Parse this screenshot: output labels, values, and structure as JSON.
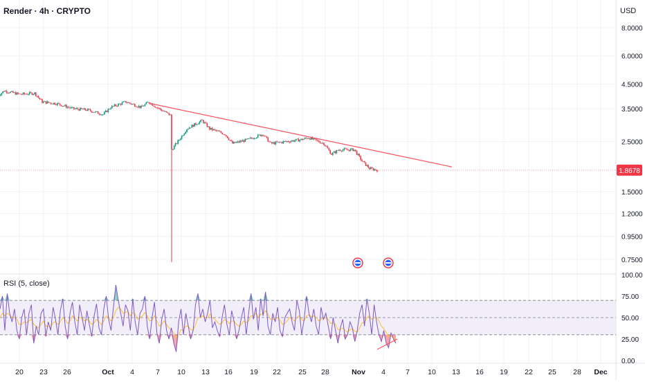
{
  "header": {
    "title": "Render · 4h · CRYPTO",
    "currency": "USD"
  },
  "colors": {
    "up": "#089981",
    "down": "#f23645",
    "trendline": "#f7525f",
    "rsi_line": "#7e57c2",
    "rsi_ma": "#fbc02d",
    "rsi_band": "#ede7f6",
    "grid": "#f0f3fa",
    "last_price": "#f23645",
    "event_icon": "#2962ff"
  },
  "chart_data": [
    {
      "type": "candlestick",
      "title": "Render · 4h · CRYPTO",
      "scale": "log",
      "y_ticks": [
        "8.0000",
        "6.0000",
        "4.5000",
        "3.5000",
        "2.5000",
        "1.5000",
        "1.2000",
        "0.9500",
        "0.7500"
      ],
      "x_ticks": [
        "20",
        "23",
        "26",
        "Oct",
        "4",
        "7",
        "10",
        "13",
        "16",
        "19",
        "22",
        "25",
        "28",
        "Nov",
        "4",
        "7",
        "10",
        "13",
        "16",
        "19",
        "22",
        "25",
        "28",
        "Dec"
      ],
      "last_price": "1.8678",
      "price_path": [
        {
          "x": "Sep 17",
          "y": 3.95
        },
        {
          "x": "Sep 18",
          "y": 4.2
        },
        {
          "x": "Sep 20",
          "y": 4.05
        },
        {
          "x": "Sep 22",
          "y": 4.1
        },
        {
          "x": "Sep 23",
          "y": 3.75
        },
        {
          "x": "Sep 25",
          "y": 3.68
        },
        {
          "x": "Sep 27",
          "y": 3.5
        },
        {
          "x": "Sep 29",
          "y": 3.45
        },
        {
          "x": "Oct 1",
          "y": 3.3
        },
        {
          "x": "Oct 2",
          "y": 3.55
        },
        {
          "x": "Oct 4",
          "y": 3.75
        },
        {
          "x": "Oct 6",
          "y": 3.55
        },
        {
          "x": "Oct 7",
          "y": 3.75
        },
        {
          "x": "Oct 8",
          "y": 3.55
        },
        {
          "x": "Oct 9",
          "y": 3.4
        },
        {
          "x": "Oct 10",
          "y": 3.25
        },
        {
          "x": "Oct 10",
          "y": 2.3
        },
        {
          "x": "Oct 11",
          "y": 2.55
        },
        {
          "x": "Oct 12",
          "y": 2.85
        },
        {
          "x": "Oct 14",
          "y": 3.1
        },
        {
          "x": "Oct 15",
          "y": 2.85
        },
        {
          "x": "Oct 17",
          "y": 2.7
        },
        {
          "x": "Oct 18",
          "y": 2.45
        },
        {
          "x": "Oct 20",
          "y": 2.55
        },
        {
          "x": "Oct 22",
          "y": 2.7
        },
        {
          "x": "Oct 23",
          "y": 2.45
        },
        {
          "x": "Oct 25",
          "y": 2.5
        },
        {
          "x": "Oct 27",
          "y": 2.55
        },
        {
          "x": "Oct 28",
          "y": 2.6
        },
        {
          "x": "Oct 30",
          "y": 2.45
        },
        {
          "x": "Oct 31",
          "y": 2.2
        },
        {
          "x": "Nov 1",
          "y": 2.3
        },
        {
          "x": "Nov 3",
          "y": 2.3
        },
        {
          "x": "Nov 4",
          "y": 2.05
        },
        {
          "x": "Nov 5",
          "y": 1.9
        },
        {
          "x": "Nov 6",
          "y": 1.8678
        }
      ],
      "events": [
        "Oct 7 low wick to 0.73",
        "Nov 3 dividend-style event icon",
        "Nov 6 event icon"
      ],
      "trendline": {
        "start": {
          "x": "Oct 7",
          "y": 3.7
        },
        "end": {
          "x": "Nov 15",
          "y": 1.93
        }
      }
    },
    {
      "type": "line",
      "title": "RSI (5, close)",
      "y_ticks": [
        "100.00",
        "75.00",
        "50.00",
        "25.00",
        "0.00"
      ],
      "bands": {
        "upper": 70,
        "middle": 50,
        "lower": 30
      },
      "series": [
        {
          "values": [
            60,
            75,
            35,
            78,
            55,
            45,
            60,
            35,
            25,
            50,
            60,
            30,
            55,
            65,
            20,
            40,
            30,
            55,
            60,
            28,
            45,
            35,
            62,
            48,
            30,
            58,
            72,
            40,
            25,
            55,
            68,
            45,
            30,
            65,
            50,
            35,
            58,
            42,
            28,
            52,
            66,
            38,
            30,
            60,
            75,
            48,
            35,
            62,
            88,
            70,
            55,
            40,
            65,
            58,
            35,
            72,
            45,
            30,
            55,
            60,
            75,
            40,
            25,
            50,
            68,
            32,
            20,
            48,
            60,
            35,
            25,
            38,
            20,
            10,
            45,
            60,
            30,
            55,
            40,
            25,
            35,
            65,
            78,
            50,
            60,
            45,
            55,
            70,
            38,
            45,
            35,
            28,
            50,
            65,
            42,
            30,
            58,
            45,
            25,
            35,
            50,
            62,
            30,
            55,
            78,
            48,
            62,
            35,
            72,
            52,
            80,
            40,
            30,
            55,
            45,
            62,
            35,
            28,
            50,
            55,
            60,
            45,
            35,
            70,
            58,
            30,
            48,
            75,
            55,
            45,
            60,
            40,
            30,
            62,
            48,
            55,
            40,
            25,
            50,
            35,
            20,
            38,
            48,
            25,
            30,
            45,
            38,
            22,
            35,
            55,
            65,
            40,
            72,
            55,
            30,
            65,
            45,
            30,
            22,
            35,
            20,
            15,
            32,
            25,
            20
          ]
        },
        {
          "values": [
            50,
            55,
            52,
            55,
            53,
            50,
            50,
            48,
            42,
            42,
            45,
            44,
            46,
            48,
            42,
            40,
            38,
            42,
            46,
            40,
            40,
            38,
            44,
            45,
            42,
            45,
            50,
            48,
            43,
            46,
            52,
            50,
            46,
            50,
            50,
            46,
            48,
            46,
            42,
            44,
            48,
            45,
            42,
            46,
            52,
            50,
            46,
            50,
            58,
            62,
            60,
            55,
            56,
            57,
            52,
            56,
            54,
            48,
            50,
            52,
            56,
            52,
            46,
            47,
            52,
            46,
            40,
            42,
            46,
            42,
            38,
            36,
            32,
            26,
            30,
            36,
            35,
            40,
            40,
            36,
            35,
            42,
            50,
            50,
            52,
            50,
            50,
            54,
            50,
            48,
            45,
            42,
            44,
            48,
            46,
            43,
            46,
            46,
            42,
            40,
            42,
            46,
            44,
            46,
            52,
            52,
            55,
            50,
            54,
            54,
            58,
            54,
            48,
            48,
            48,
            50,
            47,
            42,
            43,
            46,
            50,
            49,
            46,
            50,
            52,
            48,
            46,
            52,
            53,
            51,
            52,
            50,
            46,
            48,
            49,
            50,
            48,
            43,
            44,
            42,
            36,
            36,
            38,
            35,
            33,
            36,
            37,
            34,
            33,
            38,
            44,
            44,
            50,
            52,
            48,
            50,
            50,
            46,
            40,
            37,
            33,
            28,
            28,
            27,
            24
          ]
        }
      ]
    }
  ]
}
